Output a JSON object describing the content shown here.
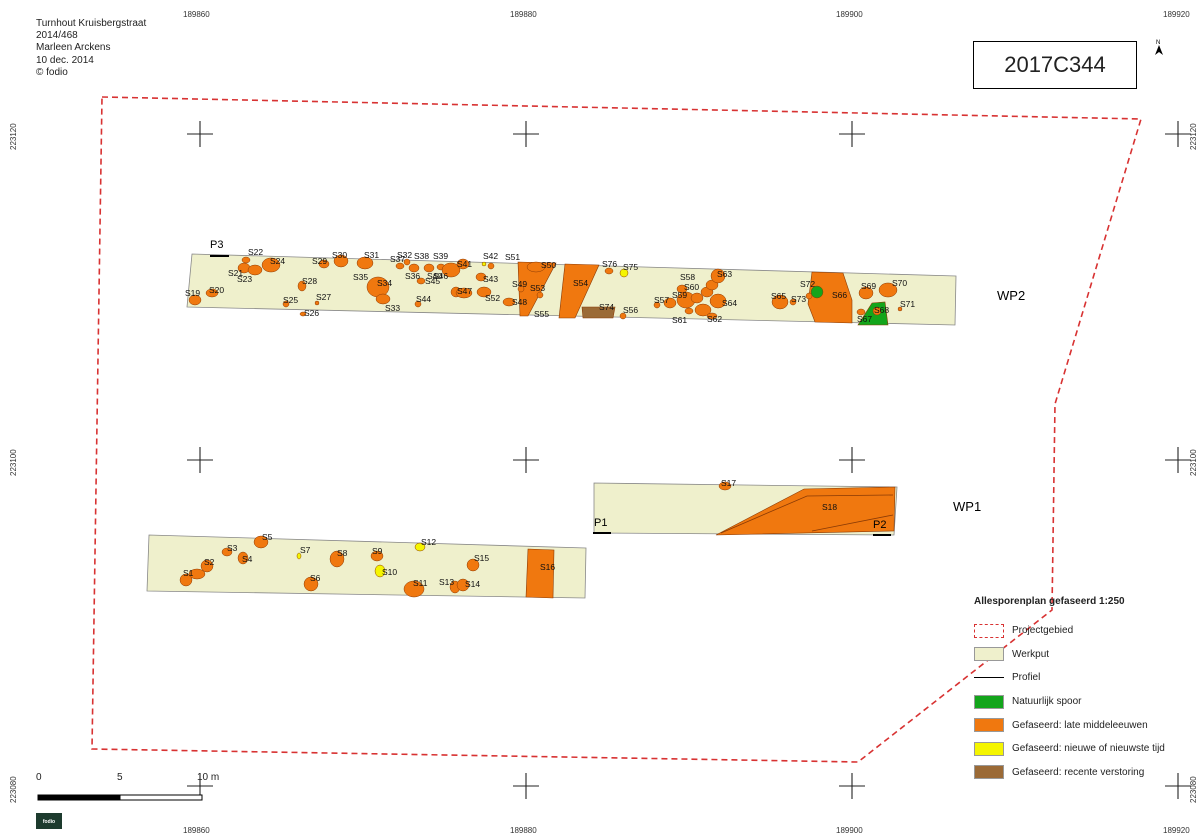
{
  "header": {
    "site": "Turnhout Kruisbergstraat",
    "project_number": "2014/468",
    "author": "Marleen Arckens",
    "date": "10 dec. 2014",
    "copyright": "© fodio"
  },
  "code_box": "2017C344",
  "north_arrow": {
    "icon": "north-arrow-icon",
    "label": "N"
  },
  "grid": {
    "x_labels": [
      "189860",
      "189880",
      "189900",
      "189920"
    ],
    "y_labels": [
      "223120",
      "223100",
      "223080"
    ]
  },
  "trenches": [
    "WP2",
    "WP1"
  ],
  "profiles": [
    "P3",
    "P1",
    "P2"
  ],
  "features": {
    "wp2": [
      "S19",
      "S20",
      "S21",
      "S22",
      "S23",
      "S24",
      "S25",
      "S26",
      "S27",
      "S28",
      "S29",
      "S30",
      "S31",
      "S32",
      "S33",
      "S34",
      "S35",
      "S36",
      "S37",
      "S38",
      "S39",
      "S40",
      "S41",
      "S42",
      "S43",
      "S44",
      "S45",
      "S46",
      "S47",
      "S48",
      "S49",
      "S50",
      "S51",
      "S52",
      "S53",
      "S54",
      "S55",
      "S56",
      "S57",
      "S58",
      "S59",
      "S60",
      "S61",
      "S62",
      "S63",
      "S64",
      "S65",
      "S66",
      "S67",
      "S68",
      "S69",
      "S70",
      "S71",
      "S72",
      "S73",
      "S74",
      "S75",
      "S76"
    ],
    "wp1": [
      "S17",
      "S18"
    ],
    "wp3": [
      "S1",
      "S2",
      "S3",
      "S4",
      "S5",
      "S6",
      "S7",
      "S8",
      "S9",
      "S10",
      "S11",
      "S12",
      "S13",
      "S14",
      "S15",
      "S16"
    ]
  },
  "legend": {
    "title": "Allesporenplan gefaseerd 1:250",
    "items": [
      {
        "label": "Projectgebied",
        "kind": "dashed",
        "color": "#d83232"
      },
      {
        "label": "Werkput",
        "kind": "fill",
        "color": "#eff0cc"
      },
      {
        "label": "Profiel",
        "kind": "line",
        "color": "#000000"
      },
      {
        "label": "Natuurlijk spoor",
        "kind": "fill",
        "color": "#13a51b"
      },
      {
        "label": "Gefaseerd: late middeleeuwen",
        "kind": "fill",
        "color": "#f0780f"
      },
      {
        "label": "Gefaseerd: nieuwe of nieuwste tijd",
        "kind": "fill",
        "color": "#f5f500"
      },
      {
        "label": "Gefaseerd: recente verstoring",
        "kind": "fill",
        "color": "#9b6a36"
      }
    ]
  },
  "scale": {
    "labels": [
      "0",
      "5",
      "10 m"
    ]
  },
  "logo_text": "fodio"
}
